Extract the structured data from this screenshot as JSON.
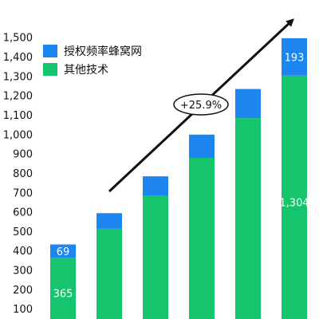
{
  "chart_data": {
    "type": "bar",
    "stacked": true,
    "categories": [
      "",
      "",
      "",
      "",
      "",
      ""
    ],
    "series": [
      {
        "name": "其他技术",
        "color": "#16c46d",
        "values": [
          365,
          515,
          685,
          880,
          1085,
          1304
        ]
      },
      {
        "name": "授权频率蜂窝网",
        "color": "#1c85f0",
        "values": [
          69,
          80,
          100,
          120,
          150,
          193
        ]
      }
    ],
    "data_labels": [
      {
        "series": 0,
        "index": 0,
        "text": "365"
      },
      {
        "series": 1,
        "index": 0,
        "text": "69"
      },
      {
        "series": 0,
        "index": 5,
        "text": "1,304"
      },
      {
        "series": 1,
        "index": 5,
        "text": "193"
      }
    ],
    "ylim": [
      0,
      1500
    ],
    "yticks": [
      "100",
      "200",
      "300",
      "400",
      "500",
      "600",
      "700",
      "800",
      "900",
      "1,000",
      "1,100",
      "1,200",
      "1,300",
      "1,400",
      "1,500"
    ],
    "annotation": "+25.9%",
    "legend_position": "top-left",
    "grid": false
  }
}
